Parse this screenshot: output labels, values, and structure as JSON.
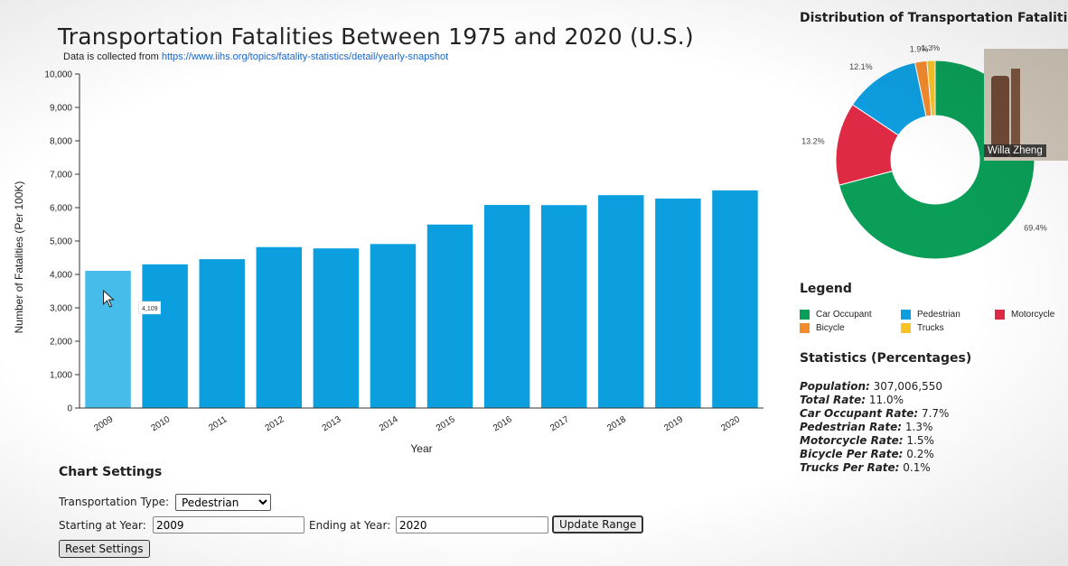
{
  "header": {
    "title": "Transportation Fatalities Between 1975 and 2020 (U.S.)",
    "source_prefix": "Data is collected from ",
    "source_link": "https://www.iihs.org/topics/fatality-statistics/detail/yearly-snapshot"
  },
  "chart_data": [
    {
      "type": "bar",
      "categories": [
        "2009",
        "2010",
        "2011",
        "2012",
        "2013",
        "2014",
        "2015",
        "2016",
        "2017",
        "2018",
        "2019",
        "2020"
      ],
      "values": [
        4109,
        4302,
        4457,
        4818,
        4779,
        4910,
        5494,
        6080,
        6075,
        6374,
        6272,
        6516
      ],
      "ylim": [
        0,
        10000
      ],
      "yticks": [
        0,
        1000,
        2000,
        3000,
        4000,
        5000,
        6000,
        7000,
        8000,
        9000,
        10000
      ],
      "ytick_labels": [
        "0",
        "1,000",
        "2,000",
        "3,000",
        "4,000",
        "5,000",
        "6,000",
        "7,000",
        "8,000",
        "9,000",
        "10,000"
      ],
      "xlabel": "Year",
      "ylabel": "Number of Fatalities (Per 100K)",
      "bar_color": "#0b9fe0",
      "hover_color": "#45bce9",
      "hovered_index": 0,
      "tooltip": "4,109"
    },
    {
      "type": "pie",
      "title": "Distribution of Transportation Fatalities",
      "slices": [
        {
          "name": "Car Occupant",
          "value": 69.4,
          "label": "69.4%",
          "color": "#0a9e58"
        },
        {
          "name": "Motorcycle",
          "value": 13.2,
          "label": "13.2%",
          "color": "#df2a44"
        },
        {
          "name": "Pedestrian",
          "value": 12.1,
          "label": "12.1%",
          "color": "#0e9ee0"
        },
        {
          "name": "Bicycle",
          "value": 1.9,
          "label": "1.9%",
          "color": "#f28a2e"
        },
        {
          "name": "Trucks",
          "value": 1.3,
          "label": "1.3%",
          "color": "#f7c325"
        }
      ]
    }
  ],
  "video": {
    "participant_name": "Willa Zheng"
  },
  "legend": {
    "title": "Legend",
    "items": [
      {
        "label": "Car Occupant",
        "color": "#0a9e58"
      },
      {
        "label": "Pedestrian",
        "color": "#0e9ee0"
      },
      {
        "label": "Motorcycle",
        "color": "#df2a44"
      },
      {
        "label": "Bicycle",
        "color": "#f28a2e"
      },
      {
        "label": "Trucks",
        "color": "#f7c325"
      }
    ]
  },
  "stats": {
    "title": "Statistics (Percentages)",
    "lines": [
      {
        "key": "Population:",
        "value": "307,006,550"
      },
      {
        "key": "Total Rate:",
        "value": "11.0%"
      },
      {
        "key": "Car Occupant Rate:",
        "value": "7.7%"
      },
      {
        "key": "Pedestrian Rate:",
        "value": "1.3%"
      },
      {
        "key": "Motorcycle Rate:",
        "value": "1.5%"
      },
      {
        "key": "Bicycle Per Rate:",
        "value": "0.2%"
      },
      {
        "key": "Trucks Per Rate:",
        "value": "0.1%"
      }
    ]
  },
  "settings": {
    "title": "Chart Settings",
    "type_label": "Transportation Type:",
    "type_selected": "Pedestrian",
    "start_label": "Starting at Year:",
    "start_value": "2009",
    "end_label": "Ending at Year:",
    "end_value": "2020",
    "update_label": "Update Range",
    "reset_label": "Reset Settings"
  }
}
